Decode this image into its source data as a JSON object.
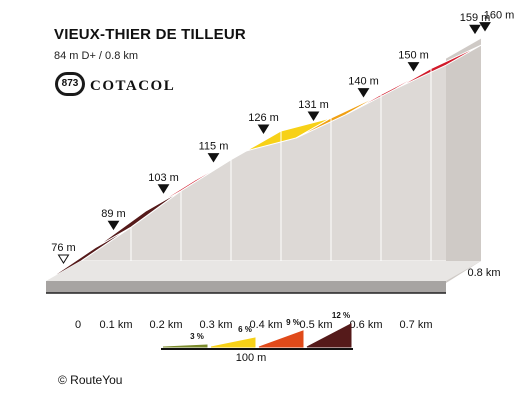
{
  "title": "VIEUX-THIER DE TILLEUR",
  "subtitle": "84 m D+ / 0.8 km",
  "cotacol": {
    "number": "873",
    "brand": "COTACOL"
  },
  "copyright": "© RouteYou",
  "chart_data": {
    "type": "area",
    "x_unit": "km",
    "x": [
      0,
      0.1,
      0.2,
      0.3,
      0.4,
      0.5,
      0.6,
      0.7,
      0.8
    ],
    "x_tick_labels": [
      "0",
      "0.1 km",
      "0.2 km",
      "0.3 km",
      "0.4 km",
      "0.5 km",
      "0.6 km",
      "0.7 km",
      "0.8 km"
    ],
    "elevation_m": [
      76,
      89,
      103,
      115,
      126,
      131,
      140,
      150,
      159,
      160
    ],
    "elevation_x": [
      0,
      0.1,
      0.2,
      0.3,
      0.4,
      0.5,
      0.6,
      0.7,
      0.8,
      0.8
    ],
    "elevation_labels": [
      "76 m",
      "89 m",
      "103 m",
      "115 m",
      "126 m",
      "131 m",
      "140 m",
      "150 m",
      "159 m",
      "160 m"
    ],
    "segments": [
      {
        "from": 0,
        "to": 0.1,
        "color": "#551a1a"
      },
      {
        "from": 0.1,
        "to": 0.2,
        "color": "#551a1a"
      },
      {
        "from": 0.2,
        "to": 0.3,
        "color": "#d11a2a"
      },
      {
        "from": 0.3,
        "to": 0.4,
        "color": "#d11a2a"
      },
      {
        "from": 0.4,
        "to": 0.5,
        "color": "#f7d117"
      },
      {
        "from": 0.5,
        "to": 0.6,
        "color": "#f0a014"
      },
      {
        "from": 0.6,
        "to": 0.7,
        "color": "#d11a2a"
      },
      {
        "from": 0.7,
        "to": 0.8,
        "color": "#d11a2a"
      }
    ],
    "gradient_legend": [
      {
        "label": "3 %",
        "color": "#7a8a2a"
      },
      {
        "label": "6 %",
        "color": "#f7d117"
      },
      {
        "label": "9 %",
        "color": "#e04a1a"
      },
      {
        "label": "12 %",
        "color": "#551a1a"
      }
    ],
    "scale_label": "100 m"
  }
}
